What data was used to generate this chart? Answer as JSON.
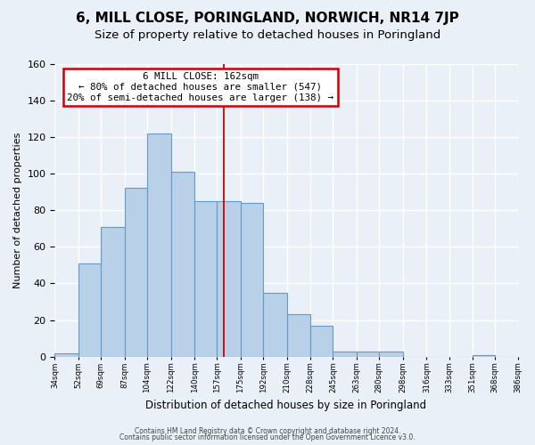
{
  "title": "6, MILL CLOSE, PORINGLAND, NORWICH, NR14 7JP",
  "subtitle": "Size of property relative to detached houses in Poringland",
  "xlabel": "Distribution of detached houses by size in Poringland",
  "ylabel": "Number of detached properties",
  "bar_values": [
    2,
    51,
    71,
    92,
    122,
    101,
    85,
    85,
    84,
    35,
    23,
    17,
    3,
    3,
    3,
    0,
    0,
    0,
    1,
    0
  ],
  "bin_left_edges": [
    34,
    52,
    69,
    87,
    104,
    122,
    140,
    157,
    175,
    192,
    210,
    228,
    245,
    263,
    280,
    298,
    316,
    333,
    351,
    368
  ],
  "bin_labels": [
    "34sqm",
    "52sqm",
    "69sqm",
    "87sqm",
    "104sqm",
    "122sqm",
    "140sqm",
    "157sqm",
    "175sqm",
    "192sqm",
    "210sqm",
    "228sqm",
    "245sqm",
    "263sqm",
    "280sqm",
    "298sqm",
    "316sqm",
    "333sqm",
    "351sqm",
    "368sqm",
    "386sqm"
  ],
  "bar_color": "#b8d0e8",
  "bar_edge_color": "#6699cc",
  "vline_x": 162,
  "vline_color": "#cc0000",
  "annotation_title": "6 MILL CLOSE: 162sqm",
  "annotation_line1": "← 80% of detached houses are smaller (547)",
  "annotation_line2": "20% of semi-detached houses are larger (138) →",
  "annotation_box_facecolor": "#ffffff",
  "annotation_box_edgecolor": "#cc0000",
  "ylim": [
    0,
    160
  ],
  "yticks": [
    0,
    20,
    40,
    60,
    80,
    100,
    120,
    140,
    160
  ],
  "footer1": "Contains HM Land Registry data © Crown copyright and database right 2024.",
  "footer2": "Contains public sector information licensed under the Open Government Licence v3.0.",
  "background_color": "#eaf0f8",
  "grid_color": "#ffffff",
  "title_fontsize": 11,
  "subtitle_fontsize": 9.5
}
